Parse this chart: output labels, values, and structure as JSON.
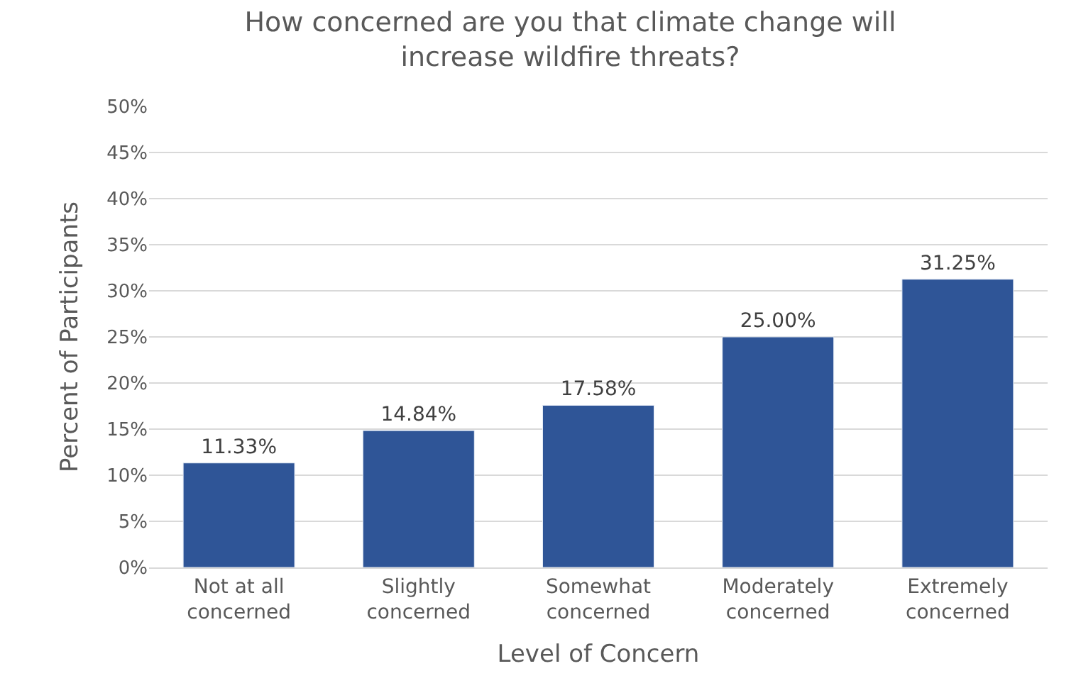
{
  "chart_data": {
    "type": "bar",
    "title": "How concerned are you that climate change will\nincrease wildfire threats?",
    "xlabel": "Level of Concern",
    "ylabel": "Percent of Participants",
    "categories": [
      "Not at all\nconcerned",
      "Slightly\nconcerned",
      "Somewhat\nconcerned",
      "Moderately\nconcerned",
      "Extremely\nconcerned"
    ],
    "values": [
      11.33,
      14.84,
      17.58,
      25.0,
      31.25
    ],
    "value_labels": [
      "11.33%",
      "14.84%",
      "17.58%",
      "25.00%",
      "31.25%"
    ],
    "color": "#2f5597",
    "ylim": [
      0,
      50
    ],
    "yticks": [
      {
        "value": 0,
        "label": "0%"
      },
      {
        "value": 5,
        "label": "5%"
      },
      {
        "value": 10,
        "label": "10%"
      },
      {
        "value": 15,
        "label": "15%"
      },
      {
        "value": 20,
        "label": "20%"
      },
      {
        "value": 25,
        "label": "25%"
      },
      {
        "value": 30,
        "label": "30%"
      },
      {
        "value": 35,
        "label": "35%"
      },
      {
        "value": 40,
        "label": "40%"
      },
      {
        "value": 45,
        "label": "45%"
      },
      {
        "value": 50,
        "label": "50%"
      }
    ],
    "grid": "y",
    "legend": false
  }
}
